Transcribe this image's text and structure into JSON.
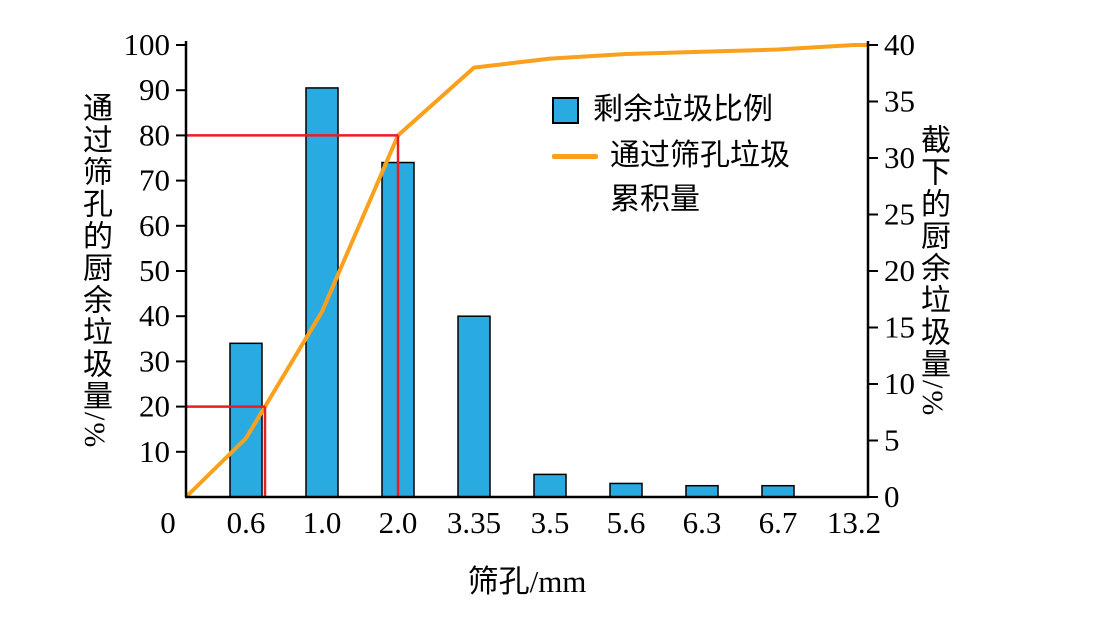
{
  "chart_data": {
    "type": "bar+line",
    "title": "",
    "xlabel": "筛孔/mm",
    "ylabel_left": "通过筛孔的厨余垃圾量/%",
    "ylabel_right": "截下的厨余垃圾量/%",
    "categories": [
      "0.6",
      "1.0",
      "2.0",
      "3.35",
      "3.5",
      "5.6",
      "6.3",
      "6.7",
      "13.2"
    ],
    "left_axis": {
      "min": 0,
      "max": 100,
      "ticks": [
        100,
        90,
        80,
        70,
        60,
        50,
        40,
        30,
        20,
        10
      ],
      "origin_label": "0"
    },
    "right_axis": {
      "min": 0,
      "max": 40,
      "ticks": [
        40,
        35,
        30,
        25,
        20,
        15,
        10,
        5,
        0
      ]
    },
    "series": [
      {
        "name": "剩余垃圾比例",
        "type": "bar",
        "axis": "left",
        "color": "#29abe2",
        "values": [
          34,
          90.5,
          74,
          40,
          5,
          3,
          2.5,
          2.5,
          0
        ]
      },
      {
        "name": "通过筛孔垃圾累积量",
        "type": "line",
        "axis": "left",
        "color": "#f9a11c",
        "values": [
          13,
          41,
          80,
          95,
          97,
          98,
          98.5,
          99,
          100
        ]
      }
    ],
    "guides": {
      "color": "#ec1c24",
      "values": [
        20,
        80
      ]
    },
    "legend": {
      "bar_label": "剩余垃圾比例",
      "line_label_line1": "通过筛孔垃圾",
      "line_label_line2": "累积量"
    }
  }
}
